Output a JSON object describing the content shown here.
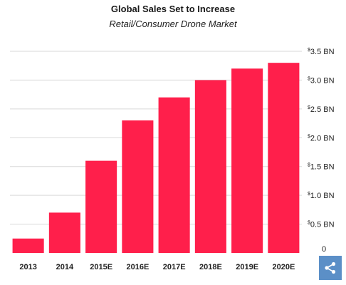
{
  "chart_data": {
    "type": "bar",
    "title": "Global Sales Set to Increase",
    "subtitle": "Retail/Consumer Drone Market",
    "categories": [
      "2013",
      "2014",
      "2015E",
      "2016E",
      "2017E",
      "2018E",
      "2019E",
      "2020E"
    ],
    "values": [
      0.25,
      0.7,
      1.6,
      2.3,
      2.7,
      3.0,
      3.2,
      3.3
    ],
    "ylim": [
      0,
      3.5
    ],
    "y_ticks": [
      {
        "value": 0,
        "label": "0"
      },
      {
        "value": 0.5,
        "label": "0.5 BN"
      },
      {
        "value": 1.0,
        "label": "1.0 BN"
      },
      {
        "value": 1.5,
        "label": "1.5 BN"
      },
      {
        "value": 2.0,
        "label": "2.0 BN"
      },
      {
        "value": 2.5,
        "label": "2.5 BN"
      },
      {
        "value": 3.0,
        "label": "3.0 BN"
      },
      {
        "value": 3.5,
        "label": "3.5 BN"
      }
    ],
    "currency_symbol": "$",
    "y_axis_side": "right",
    "grid": true,
    "bar_color": "#ff1f4b",
    "grid_color": "#d9d9d9"
  },
  "share_icon": "share-icon"
}
